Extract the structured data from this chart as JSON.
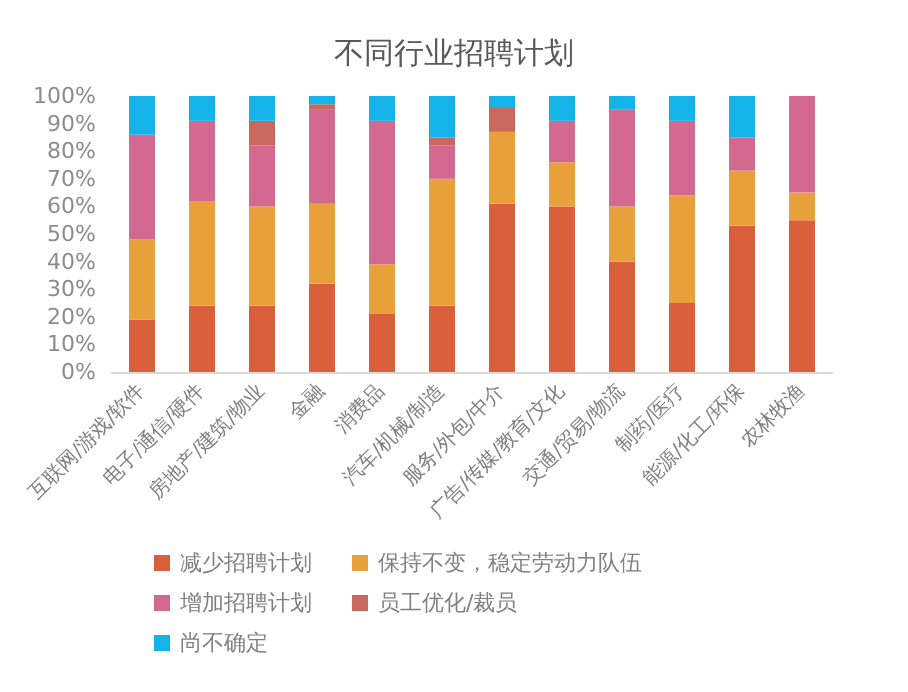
{
  "chart_data": {
    "type": "bar",
    "title": "不同行业招聘计划",
    "stacked": true,
    "legend": "bottom",
    "grid": false,
    "categories": [
      "互联网/游戏/软件",
      "电子/通信/硬件",
      "房地产/建筑/物业",
      "金融",
      "消费品",
      "汽车/机械/制造",
      "服务/外包/中介",
      "广告/传媒/教育/文化",
      "交通/贸易/物流",
      "制药/医疗",
      "能源/化工/环保",
      "农林牧渔"
    ],
    "ylim": [
      0,
      100
    ],
    "yticks": [
      {
        "value": 0,
        "label": "0%"
      },
      {
        "value": 10,
        "label": "10%"
      },
      {
        "value": 20,
        "label": "20%"
      },
      {
        "value": 30,
        "label": "30%"
      },
      {
        "value": 40,
        "label": "40%"
      },
      {
        "value": 50,
        "label": "50%"
      },
      {
        "value": 60,
        "label": "60%"
      },
      {
        "value": 70,
        "label": "70%"
      },
      {
        "value": 80,
        "label": "80%"
      },
      {
        "value": 90,
        "label": "90%"
      },
      {
        "value": 100,
        "label": "100%"
      }
    ],
    "series": [
      {
        "name": "减少招聘计划",
        "color": "#d9603b",
        "values": [
          19,
          24,
          24,
          32,
          21,
          24,
          61,
          60,
          40,
          25,
          53,
          55
        ]
      },
      {
        "name": "保持不变，稳定劳动力队伍",
        "color": "#e8a03a",
        "values": [
          29,
          38,
          36,
          29,
          18,
          46,
          26,
          16,
          20,
          39,
          20,
          10
        ]
      },
      {
        "name": "增加招聘计划",
        "color": "#d4698f",
        "values": [
          38,
          29,
          22,
          34,
          52,
          12,
          0,
          15,
          35,
          27,
          12,
          35
        ]
      },
      {
        "name": "员工优化/裁员",
        "color": "#c8685e",
        "values": [
          0,
          0,
          9,
          2,
          0,
          3,
          9,
          0,
          0,
          0,
          0,
          0
        ]
      },
      {
        "name": "尚不确定",
        "color": "#14b4e8",
        "values": [
          14,
          9,
          9,
          3,
          9,
          15,
          4,
          9,
          5,
          9,
          15,
          0
        ]
      }
    ]
  }
}
